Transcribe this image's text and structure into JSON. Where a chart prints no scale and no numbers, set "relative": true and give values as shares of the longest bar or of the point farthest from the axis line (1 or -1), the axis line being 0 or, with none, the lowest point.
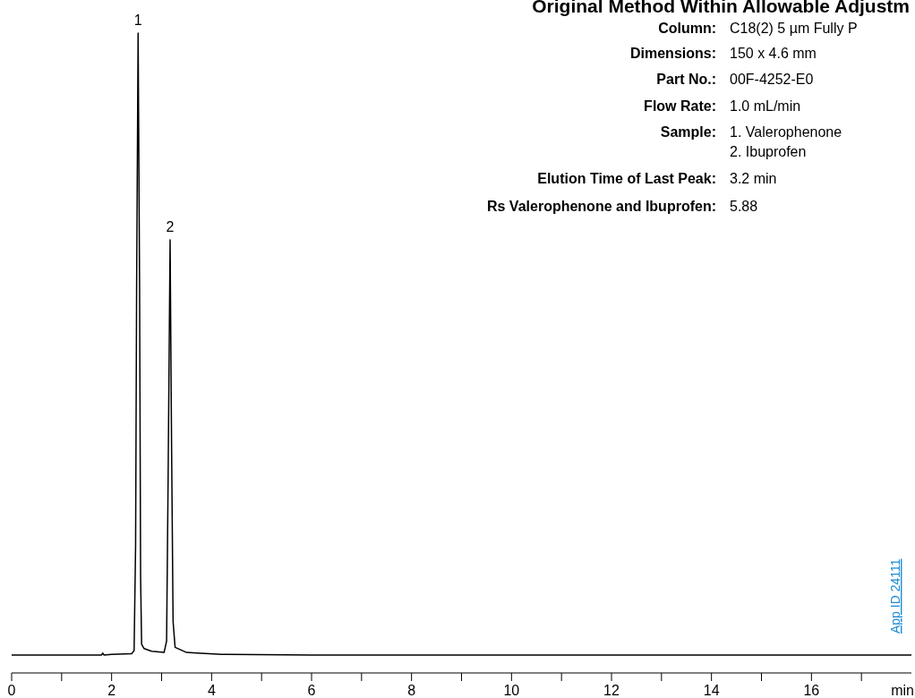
{
  "chart_data": {
    "type": "line",
    "title": "Original Method Within Allowable Adjustm",
    "xlabel": "min",
    "relative": true,
    "x": [
      0,
      1.0,
      1.8,
      1.82,
      1.85,
      2.0,
      2.4,
      2.45,
      2.48,
      2.5,
      2.53,
      2.56,
      2.58,
      2.6,
      2.65,
      2.8,
      3.05,
      3.1,
      3.13,
      3.17,
      3.2,
      3.23,
      3.27,
      3.5,
      3.7,
      4.2,
      6,
      10,
      14,
      18
    ],
    "series": [
      {
        "color": "#000000",
        "values": [
          0.028,
          0.028,
          0.028,
          0.031,
          0.028,
          0.029,
          0.03,
          0.035,
          0.2,
          0.6,
          1,
          0.6,
          0.15,
          0.045,
          0.038,
          0.034,
          0.032,
          0.05,
          0.3,
          0.677,
          0.35,
          0.08,
          0.04,
          0.032,
          0.031,
          0.029,
          0.028,
          0.028,
          0.028,
          0.028
        ]
      }
    ],
    "xlim": [
      0,
      18
    ],
    "xticks": [
      0,
      {
        "value": 1,
        "label": null
      },
      2,
      {
        "value": 3,
        "label": null
      },
      4,
      {
        "value": 5,
        "label": null
      },
      6,
      {
        "value": 7,
        "label": null
      },
      8,
      {
        "value": 9,
        "label": null
      },
      10,
      {
        "value": 11,
        "label": null
      },
      12,
      {
        "value": 13,
        "label": null
      },
      14,
      {
        "value": 15,
        "label": null
      },
      16,
      {
        "value": 17,
        "label": null
      }
    ],
    "grid": false,
    "marker": "none",
    "line_style": "solid",
    "annotations": [
      {
        "text": "1",
        "x": 2.53,
        "y": 1
      },
      {
        "text": "2",
        "x": 3.17,
        "y": 0.677
      },
      "Column: C18(2) 5 µm Fully P",
      "Dimensions: 150 x 4.6 mm",
      "Part No.: 00F-4252-E0",
      "Flow Rate: 1.0 mL/min",
      "Sample: 1. Valerophenone",
      "2. Ibuprofen",
      "Elution Time of Last Peak: 3.2 min",
      "Rs Valerophenone and Ibuprofen: 5.88",
      "App ID 24111"
    ]
  }
}
